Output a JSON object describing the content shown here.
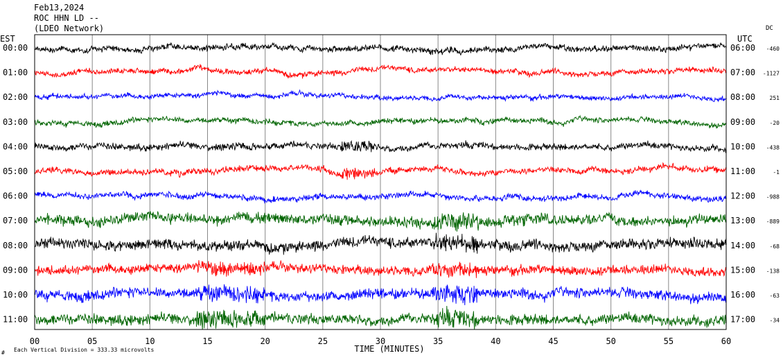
{
  "header": {
    "date": "Feb13,2024",
    "station": "ROC HHN LD --",
    "network": "(LDEO Network)"
  },
  "labels": {
    "left_tz": "EST",
    "right_tz": "UTC",
    "dc_header": "DC",
    "xlabel": "TIME (MINUTES)",
    "footnote": "Each Vertical Division =  333.33 microvolts",
    "corner_mark": "#"
  },
  "chart_data": {
    "type": "line",
    "title": "Feb13,2024  ROC HHN LD --  (LDEO Network)",
    "xlabel": "TIME (MINUTES)",
    "ylabel": "",
    "xlim": [
      0,
      60
    ],
    "x_ticks": [
      "00",
      "05",
      "10",
      "15",
      "20",
      "25",
      "30",
      "35",
      "40",
      "45",
      "50",
      "55",
      "60"
    ],
    "grid": true,
    "color_cycle": [
      "#000000",
      "#ff0000",
      "#0000ff",
      "#006400"
    ],
    "rows": [
      {
        "est": "00:00",
        "utc": "06:00",
        "dc": "-460"
      },
      {
        "est": "01:00",
        "utc": "07:00",
        "dc": "-1127"
      },
      {
        "est": "02:00",
        "utc": "08:00",
        "dc": "251"
      },
      {
        "est": "03:00",
        "utc": "09:00",
        "dc": "-20"
      },
      {
        "est": "04:00",
        "utc": "10:00",
        "dc": "-438"
      },
      {
        "est": "05:00",
        "utc": "11:00",
        "dc": "-1"
      },
      {
        "est": "06:00",
        "utc": "12:00",
        "dc": "-988"
      },
      {
        "est": "07:00",
        "utc": "13:00",
        "dc": "-889"
      },
      {
        "est": "08:00",
        "utc": "14:00",
        "dc": "-68"
      },
      {
        "est": "09:00",
        "utc": "15:00",
        "dc": "-138"
      },
      {
        "est": "10:00",
        "utc": "16:00",
        "dc": "-63"
      },
      {
        "est": "11:00",
        "utc": "17:00",
        "dc": "-34"
      }
    ]
  }
}
